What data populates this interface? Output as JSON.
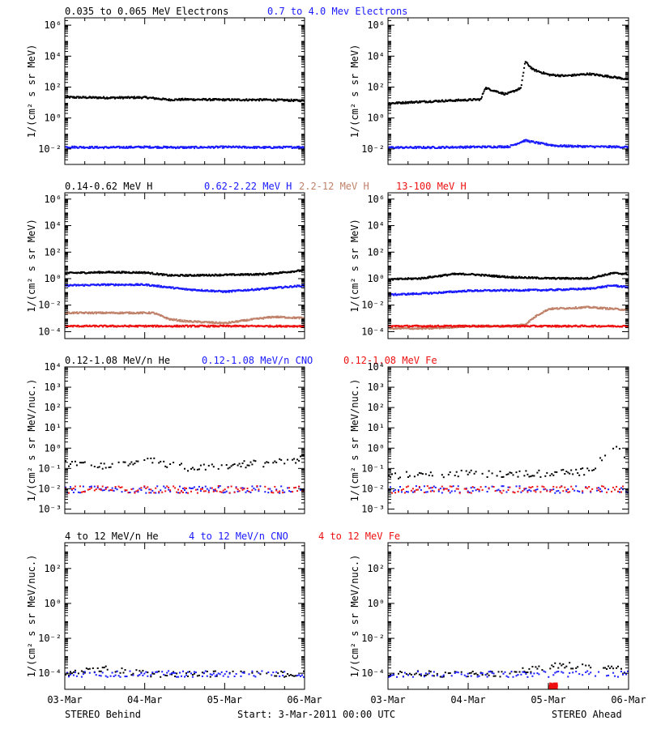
{
  "colors": {
    "black": "#000000",
    "blue": "#1a1aff",
    "tan": "#c0826a",
    "red": "#ee1111",
    "frame": "#000000"
  },
  "rows": [
    {
      "id": "electrons",
      "legend": [
        {
          "text": "0.035 to 0.065 MeV Electrons",
          "color": "black"
        },
        {
          "text": "0.7 to 4.0 Mev Electrons",
          "color": "blue"
        }
      ],
      "ylabel": "1/(cm² s sr MeV)"
    },
    {
      "id": "protons",
      "legend": [
        {
          "text": "0.14-0.62 MeV H",
          "color": "black"
        },
        {
          "text": "0.62-2.22 MeV H",
          "color": "blue"
        },
        {
          "text": "2.2-12 MeV H",
          "color": "tan"
        },
        {
          "text": "13-100 MeV H",
          "color": "red"
        }
      ],
      "ylabel": "1/(cm² s sr MeV)"
    },
    {
      "id": "low-heavy",
      "legend": [
        {
          "text": "0.12-1.08 MeV/n He",
          "color": "black"
        },
        {
          "text": "0.12-1.08 MeV/n CNO",
          "color": "blue"
        },
        {
          "text": "0.12-1.08 MeV Fe",
          "color": "red"
        }
      ],
      "ylabel": "1/(cm² s sr MeV/nuc.)"
    },
    {
      "id": "high-heavy",
      "legend": [
        {
          "text": "4 to 12 MeV/n He",
          "color": "black"
        },
        {
          "text": "4 to 12 MeV/n CNO",
          "color": "blue"
        },
        {
          "text": "4 to 12 MeV Fe",
          "color": "red"
        }
      ],
      "ylabel": "1/(cm² s sr MeV/nuc.)"
    }
  ],
  "footer": {
    "left": "STEREO Behind",
    "center": "Start:  3-Mar-2011 00:00 UTC",
    "right": "STEREO Ahead"
  },
  "chart_data": [
    {
      "type": "scatter",
      "panel": "electrons-behind",
      "yscale": "log",
      "xlim": [
        0,
        3
      ],
      "ylim": [
        0.001,
        3000000
      ],
      "x_ticks": [
        "03-Mar",
        "04-Mar",
        "05-Mar",
        "06-Mar"
      ],
      "y_ticks": [
        "10⁻²",
        "10⁰",
        "10²",
        "10⁴",
        "10⁶"
      ],
      "series": [
        {
          "name": "0.035 to 0.065 MeV Electrons",
          "color": "black",
          "x": [
            0,
            0.5,
            1.0,
            1.3,
            1.5,
            2.0,
            2.5,
            3.0
          ],
          "y": [
            25,
            23,
            24,
            17,
            18,
            17,
            17,
            15
          ]
        },
        {
          "name": "0.7 to 4.0 Mev Electrons",
          "color": "blue",
          "x": [
            0,
            0.5,
            1.0,
            1.5,
            2.0,
            2.5,
            3.0
          ],
          "y": [
            0.015,
            0.014,
            0.015,
            0.014,
            0.015,
            0.014,
            0.015
          ]
        }
      ]
    },
    {
      "type": "scatter",
      "panel": "electrons-ahead",
      "yscale": "log",
      "xlim": [
        0,
        3
      ],
      "ylim": [
        0.001,
        3000000
      ],
      "x_ticks": [
        "03-Mar",
        "04-Mar",
        "05-Mar",
        "06-Mar"
      ],
      "y_ticks": [
        "10⁻²",
        "10⁰",
        "10²",
        "10⁴",
        "10⁶"
      ],
      "series": [
        {
          "name": "0.035 to 0.065 MeV Electrons",
          "color": "black",
          "x": [
            0,
            0.3,
            0.6,
            0.9,
            1.15,
            1.2,
            1.45,
            1.5,
            1.65,
            1.7,
            1.8,
            2.0,
            2.2,
            2.5,
            2.8,
            3.0
          ],
          "y": [
            10,
            12,
            14,
            16,
            18,
            100,
            40,
            45,
            100,
            5000,
            1500,
            700,
            600,
            800,
            500,
            350
          ]
        },
        {
          "name": "0.7 to 4.0 Mev Electrons",
          "color": "blue",
          "x": [
            0,
            0.5,
            1.0,
            1.5,
            1.7,
            1.9,
            2.1,
            2.5,
            3.0
          ],
          "y": [
            0.014,
            0.014,
            0.015,
            0.016,
            0.04,
            0.025,
            0.018,
            0.016,
            0.015
          ]
        }
      ]
    },
    {
      "type": "scatter",
      "panel": "protons-behind",
      "yscale": "log",
      "xlim": [
        0,
        3
      ],
      "ylim": [
        3e-05,
        3000000
      ],
      "x_ticks": [
        "03-Mar",
        "04-Mar",
        "05-Mar",
        "06-Mar"
      ],
      "y_ticks": [
        "10⁻⁴",
        "10⁻²",
        "10⁰",
        "10²",
        "10⁴",
        "10⁶"
      ],
      "series": [
        {
          "name": "0.14-0.62 MeV H",
          "color": "black",
          "x": [
            0,
            0.5,
            1.0,
            1.3,
            1.5,
            2.0,
            2.5,
            3.0
          ],
          "y": [
            3,
            3.5,
            3.3,
            2,
            2,
            2.2,
            2.5,
            5
          ]
        },
        {
          "name": "0.62-2.22 MeV H",
          "color": "blue",
          "x": [
            0,
            0.5,
            1.0,
            1.3,
            1.5,
            2.0,
            2.5,
            3.0
          ],
          "y": [
            0.35,
            0.4,
            0.4,
            0.25,
            0.18,
            0.12,
            0.2,
            0.35
          ]
        },
        {
          "name": "2.2-12 MeV H",
          "color": "tan",
          "x": [
            0,
            0.5,
            1.0,
            1.1,
            1.3,
            1.5,
            2.0,
            2.3,
            2.6,
            3.0
          ],
          "y": [
            0.003,
            0.003,
            0.003,
            0.003,
            0.001,
            0.0007,
            0.0005,
            0.0009,
            0.0015,
            0.0012
          ]
        },
        {
          "name": "13-100 MeV H",
          "color": "red",
          "x": [
            0,
            1.0,
            2.0,
            3.0
          ],
          "y": [
            0.0003,
            0.0003,
            0.0003,
            0.0003
          ]
        }
      ]
    },
    {
      "type": "scatter",
      "panel": "protons-ahead",
      "yscale": "log",
      "xlim": [
        0,
        3
      ],
      "ylim": [
        3e-05,
        3000000
      ],
      "x_ticks": [
        "03-Mar",
        "04-Mar",
        "05-Mar",
        "06-Mar"
      ],
      "y_ticks": [
        "10⁻⁴",
        "10⁻²",
        "10⁰",
        "10²",
        "10⁴",
        "10⁶"
      ],
      "series": [
        {
          "name": "0.14-0.62 MeV H",
          "color": "black",
          "x": [
            0,
            0.4,
            0.8,
            1.0,
            1.5,
            2.0,
            2.5,
            2.8,
            3.0
          ],
          "y": [
            1,
            1.2,
            2.5,
            2.5,
            1.5,
            1.2,
            1.2,
            3,
            2.5
          ]
        },
        {
          "name": "0.62-2.22 MeV H",
          "color": "blue",
          "x": [
            0,
            0.5,
            1.0,
            1.5,
            2.0,
            2.5,
            2.8,
            3.0
          ],
          "y": [
            0.07,
            0.09,
            0.14,
            0.15,
            0.16,
            0.2,
            0.35,
            0.25
          ]
        },
        {
          "name": "2.2-12 MeV H",
          "color": "tan",
          "x": [
            0,
            0.5,
            1.0,
            1.5,
            1.7,
            1.85,
            2.0,
            2.5,
            3.0
          ],
          "y": [
            0.0002,
            0.0002,
            0.0003,
            0.0003,
            0.0004,
            0.002,
            0.006,
            0.008,
            0.005
          ]
        },
        {
          "name": "13-100 MeV H",
          "color": "red",
          "x": [
            0,
            1.0,
            2.0,
            3.0
          ],
          "y": [
            0.0003,
            0.0003,
            0.0003,
            0.0003
          ]
        }
      ]
    },
    {
      "type": "scatter",
      "panel": "low-heavy-behind",
      "yscale": "log",
      "xlim": [
        0,
        3
      ],
      "ylim": [
        0.0006,
        10000
      ],
      "x_ticks": [
        "03-Mar",
        "04-Mar",
        "05-Mar",
        "06-Mar"
      ],
      "y_ticks": [
        "10⁻³",
        "10⁻²",
        "10⁻¹",
        "10⁰",
        "10¹",
        "10²",
        "10³",
        "10⁴"
      ],
      "series": [
        {
          "name": "0.12-1.08 MeV/n He",
          "color": "black",
          "x": [
            0,
            0.5,
            1.0,
            1.5,
            2.0,
            2.5,
            3.0
          ],
          "y": [
            0.2,
            0.15,
            0.3,
            0.12,
            0.15,
            0.2,
            0.35
          ]
        },
        {
          "name": "0.12-1.08 MeV/n CNO",
          "color": "blue",
          "x": [
            0,
            1.0,
            2.0,
            3.0
          ],
          "y": [
            0.01,
            0.01,
            0.01,
            0.01
          ]
        },
        {
          "name": "0.12-1.08 MeV Fe",
          "color": "red",
          "x": [
            0,
            1.0,
            2.0,
            3.0
          ],
          "y": [
            0.01,
            0.01,
            0.01,
            0.01
          ]
        }
      ]
    },
    {
      "type": "scatter",
      "panel": "low-heavy-ahead",
      "yscale": "log",
      "xlim": [
        0,
        3
      ],
      "ylim": [
        0.0006,
        10000
      ],
      "x_ticks": [
        "03-Mar",
        "04-Mar",
        "05-Mar",
        "06-Mar"
      ],
      "y_ticks": [
        "10⁻³",
        "10⁻²",
        "10⁻¹",
        "10⁰",
        "10¹",
        "10²",
        "10³",
        "10⁴"
      ],
      "series": [
        {
          "name": "0.12-1.08 MeV/n He",
          "color": "black",
          "x": [
            0,
            0.5,
            1.0,
            1.5,
            2.0,
            2.5,
            2.7,
            2.8,
            3.0
          ],
          "y": [
            0.05,
            0.05,
            0.06,
            0.06,
            0.06,
            0.08,
            0.5,
            1.2,
            0.3
          ]
        },
        {
          "name": "0.12-1.08 MeV/n CNO",
          "color": "blue",
          "x": [
            0,
            1.0,
            2.0,
            3.0
          ],
          "y": [
            0.01,
            0.01,
            0.01,
            0.01
          ]
        },
        {
          "name": "0.12-1.08 MeV Fe",
          "color": "red",
          "x": [
            0,
            1.0,
            2.0,
            3.0
          ],
          "y": [
            0.01,
            0.01,
            0.01,
            0.01
          ]
        }
      ]
    },
    {
      "type": "scatter",
      "panel": "high-heavy-behind",
      "yscale": "log",
      "xlim": [
        0,
        3
      ],
      "ylim": [
        1.2e-05,
        3000
      ],
      "x_ticks": [
        "03-Mar",
        "04-Mar",
        "05-Mar",
        "06-Mar"
      ],
      "y_ticks": [
        "10⁻⁴",
        "10⁻²",
        "10⁰",
        "10²"
      ],
      "series": [
        {
          "name": "4 to 12 MeV/n He",
          "color": "black",
          "x": [
            0,
            0.5,
            1.0,
            1.5,
            2.0,
            2.5,
            3.0
          ],
          "y": [
            0.0001,
            0.0002,
            0.0001,
            0.0001,
            0.0001,
            0.0001,
            0.0001
          ]
        },
        {
          "name": "4 to 12 MeV/n CNO",
          "color": "blue",
          "x": [
            0,
            1.5,
            3.0
          ],
          "y": [
            0.0001,
            0.0001,
            0.0001
          ]
        }
      ]
    },
    {
      "type": "scatter",
      "panel": "high-heavy-ahead",
      "yscale": "log",
      "xlim": [
        0,
        3
      ],
      "ylim": [
        1.2e-05,
        3000
      ],
      "x_ticks": [
        "03-Mar",
        "04-Mar",
        "05-Mar",
        "06-Mar"
      ],
      "y_ticks": [
        "10⁻⁴",
        "10⁻²",
        "10⁰",
        "10²"
      ],
      "series": [
        {
          "name": "4 to 12 MeV/n He",
          "color": "black",
          "x": [
            0,
            0.5,
            1.0,
            1.5,
            1.8,
            2.0,
            2.5,
            3.0
          ],
          "y": [
            0.0001,
            0.0001,
            0.0001,
            0.0001,
            0.0002,
            0.0003,
            0.0003,
            0.0002
          ]
        },
        {
          "name": "4 to 12 MeV/n CNO",
          "color": "blue",
          "x": [
            0,
            1.5,
            3.0
          ],
          "y": [
            0.0001,
            0.0001,
            0.0001
          ]
        },
        {
          "name": "4 to 12 MeV Fe",
          "color": "red",
          "x": [
            2.0,
            2.1
          ],
          "y": [
            2e-05,
            2e-05
          ]
        }
      ]
    }
  ]
}
